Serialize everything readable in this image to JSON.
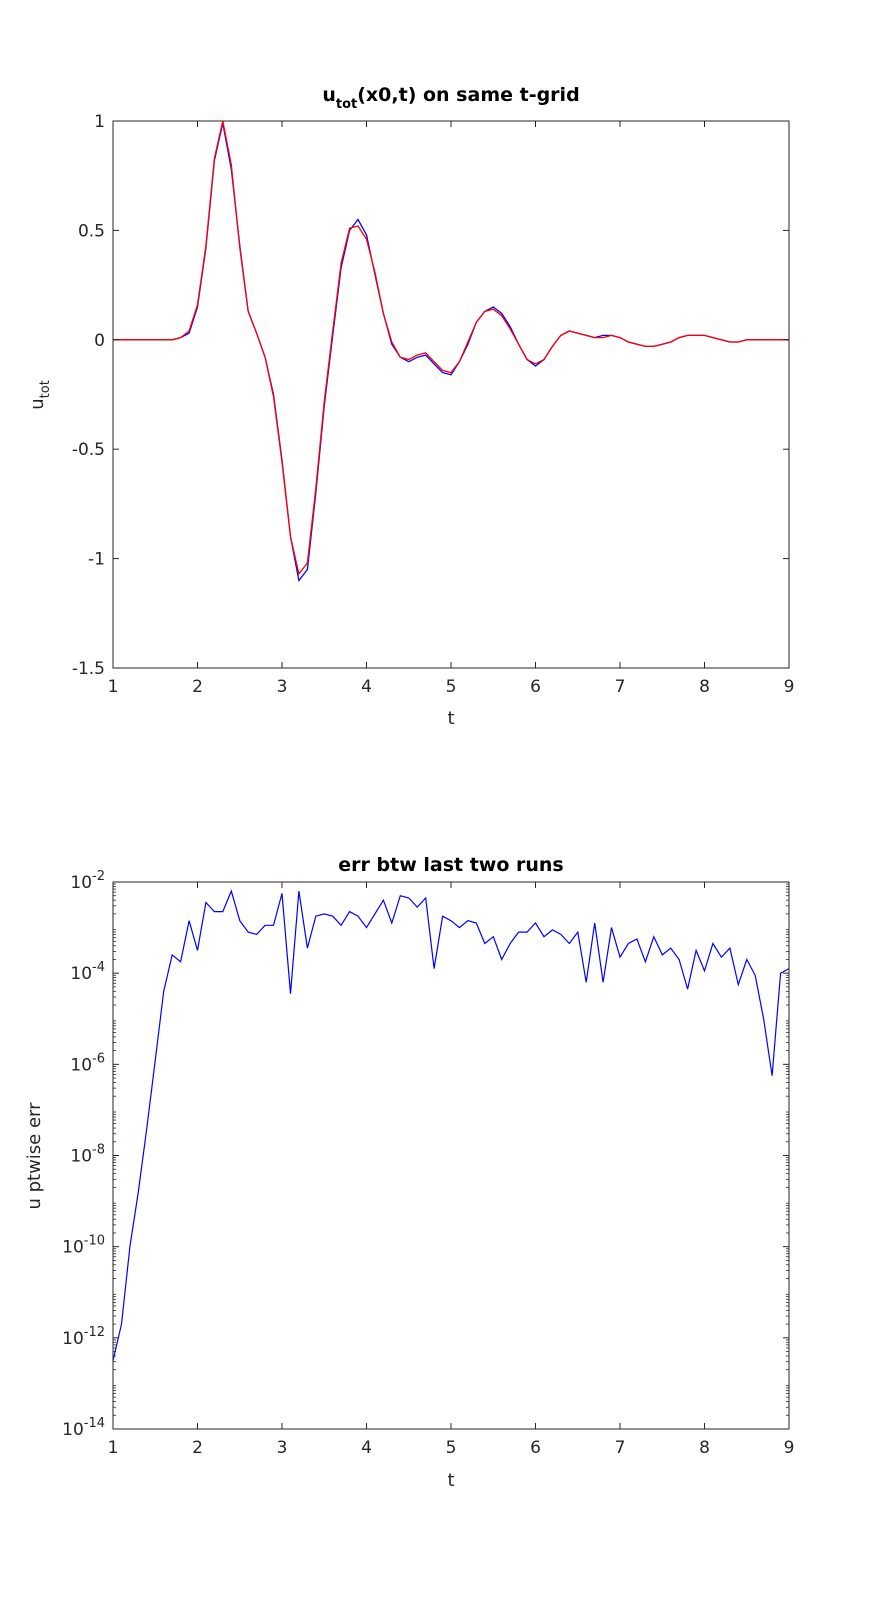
{
  "chart_data": [
    {
      "type": "line",
      "title_main": "u",
      "title_sub": "tot",
      "title_rest": "(x0,t) on same t-grid",
      "xlabel": "t",
      "ylabel_main": "u",
      "ylabel_sub": "tot",
      "xlim": [
        1,
        9
      ],
      "ylim": [
        -1.5,
        1
      ],
      "xticks": [
        1,
        2,
        3,
        4,
        5,
        6,
        7,
        8,
        9
      ],
      "yticks": [
        -1.5,
        -1,
        -0.5,
        0,
        0.5,
        1
      ],
      "ytick_labels": [
        "-1.5",
        "-1",
        "-0.5",
        "0",
        "0.5",
        "1"
      ],
      "grid": false,
      "series": [
        {
          "color": "#0000ff",
          "x": [
            1.0,
            1.7,
            1.8,
            1.9,
            2.0,
            2.1,
            2.2,
            2.3,
            2.4,
            2.5,
            2.6,
            2.7,
            2.8,
            2.9,
            3.0,
            3.1,
            3.2,
            3.3,
            3.4,
            3.5,
            3.6,
            3.7,
            3.8,
            3.9,
            4.0,
            4.1,
            4.2,
            4.3,
            4.4,
            4.5,
            4.6,
            4.7,
            4.8,
            4.9,
            5.0,
            5.1,
            5.2,
            5.3,
            5.4,
            5.5,
            5.6,
            5.7,
            5.8,
            5.9,
            6.0,
            6.1,
            6.2,
            6.3,
            6.4,
            6.5,
            6.6,
            6.7,
            6.8,
            6.9,
            7.0,
            7.1,
            7.2,
            7.3,
            7.4,
            7.5,
            7.6,
            7.7,
            7.8,
            7.9,
            8.0,
            8.1,
            8.2,
            8.3,
            8.4,
            8.5,
            8.6,
            8.7,
            8.8,
            8.9,
            9.0
          ],
          "y": [
            0,
            0,
            0.01,
            0.03,
            0.15,
            0.42,
            0.82,
            0.99,
            0.78,
            0.43,
            0.13,
            0.03,
            -0.08,
            -0.25,
            -0.55,
            -0.9,
            -1.1,
            -1.05,
            -0.7,
            -0.3,
            0.02,
            0.33,
            0.5,
            0.55,
            0.48,
            0.3,
            0.12,
            -0.02,
            -0.08,
            -0.1,
            -0.08,
            -0.07,
            -0.11,
            -0.15,
            -0.16,
            -0.1,
            -0.02,
            0.08,
            0.13,
            0.15,
            0.12,
            0.06,
            -0.02,
            -0.09,
            -0.12,
            -0.09,
            -0.03,
            0.02,
            0.04,
            0.03,
            0.02,
            0.01,
            0.02,
            0.02,
            0.01,
            -0.01,
            -0.02,
            -0.03,
            -0.03,
            -0.02,
            -0.01,
            0.01,
            0.02,
            0.02,
            0.02,
            0.01,
            0,
            -0.01,
            -0.01,
            0,
            0,
            0,
            0,
            0,
            0
          ]
        },
        {
          "color": "#ff0000",
          "x": [
            1.0,
            1.7,
            1.8,
            1.9,
            2.0,
            2.1,
            2.2,
            2.3,
            2.4,
            2.5,
            2.6,
            2.7,
            2.8,
            2.9,
            3.0,
            3.1,
            3.2,
            3.3,
            3.4,
            3.5,
            3.6,
            3.7,
            3.8,
            3.9,
            4.0,
            4.1,
            4.2,
            4.3,
            4.4,
            4.5,
            4.6,
            4.7,
            4.8,
            4.9,
            5.0,
            5.1,
            5.2,
            5.3,
            5.4,
            5.5,
            5.6,
            5.7,
            5.8,
            5.9,
            6.0,
            6.1,
            6.2,
            6.3,
            6.4,
            6.5,
            6.6,
            6.7,
            6.8,
            6.9,
            7.0,
            7.1,
            7.2,
            7.3,
            7.4,
            7.5,
            7.6,
            7.7,
            7.8,
            7.9,
            8.0,
            8.1,
            8.2,
            8.3,
            8.4,
            8.5,
            8.6,
            8.7,
            8.8,
            8.9,
            9.0
          ],
          "y": [
            0,
            0,
            0.01,
            0.04,
            0.16,
            0.43,
            0.83,
            1.0,
            0.8,
            0.42,
            0.13,
            0.03,
            -0.08,
            -0.26,
            -0.56,
            -0.9,
            -1.07,
            -1.02,
            -0.68,
            -0.28,
            0.04,
            0.35,
            0.51,
            0.52,
            0.46,
            0.31,
            0.12,
            -0.01,
            -0.08,
            -0.09,
            -0.07,
            -0.06,
            -0.1,
            -0.14,
            -0.15,
            -0.1,
            -0.01,
            0.08,
            0.13,
            0.14,
            0.11,
            0.05,
            -0.02,
            -0.09,
            -0.11,
            -0.09,
            -0.03,
            0.02,
            0.04,
            0.03,
            0.02,
            0.01,
            0.01,
            0.02,
            0.01,
            -0.01,
            -0.02,
            -0.03,
            -0.03,
            -0.02,
            -0.01,
            0.01,
            0.02,
            0.02,
            0.02,
            0.01,
            0,
            -0.01,
            -0.01,
            0,
            0,
            0,
            0,
            0,
            0
          ]
        }
      ]
    },
    {
      "type": "line",
      "title": "err btw last two runs",
      "xlabel": "t",
      "ylabel": "u ptwise err",
      "xlim": [
        1,
        9
      ],
      "ylim_exp": [
        -14,
        -2
      ],
      "yscale": "log",
      "xticks": [
        1,
        2,
        3,
        4,
        5,
        6,
        7,
        8,
        9
      ],
      "yticks_exp": [
        -14,
        -12,
        -10,
        -8,
        -6,
        -4,
        -2
      ],
      "ytick_base": "10",
      "grid": false,
      "series": [
        {
          "color": "#0000ff",
          "x": [
            1.0,
            1.1,
            1.2,
            1.3,
            1.4,
            1.5,
            1.6,
            1.7,
            1.8,
            1.9,
            2.0,
            2.1,
            2.2,
            2.3,
            2.4,
            2.5,
            2.6,
            2.7,
            2.8,
            2.9,
            3.0,
            3.1,
            3.2,
            3.3,
            3.4,
            3.5,
            3.6,
            3.7,
            3.8,
            3.9,
            4.0,
            4.1,
            4.2,
            4.3,
            4.4,
            4.5,
            4.6,
            4.7,
            4.8,
            4.9,
            5.0,
            5.1,
            5.2,
            5.3,
            5.4,
            5.5,
            5.6,
            5.7,
            5.8,
            5.9,
            6.0,
            6.1,
            6.2,
            6.3,
            6.4,
            6.5,
            6.6,
            6.7,
            6.8,
            6.9,
            7.0,
            7.1,
            7.2,
            7.3,
            7.4,
            7.5,
            7.6,
            7.7,
            7.8,
            7.9,
            8.0,
            8.1,
            8.2,
            8.3,
            8.4,
            8.5,
            8.6,
            8.7,
            8.8,
            8.9,
            9.0
          ],
          "y_exp": [
            -12.5,
            -11.7,
            -10.0,
            -8.8,
            -7.4,
            -5.9,
            -4.4,
            -3.6,
            -3.75,
            -2.85,
            -3.5,
            -2.45,
            -2.65,
            -2.65,
            -2.2,
            -2.85,
            -3.1,
            -3.15,
            -2.95,
            -2.95,
            -2.25,
            -4.45,
            -2.2,
            -3.45,
            -2.75,
            -2.7,
            -2.75,
            -2.95,
            -2.65,
            -2.75,
            -3.0,
            -2.7,
            -2.4,
            -2.9,
            -2.3,
            -2.35,
            -2.55,
            -2.35,
            -3.9,
            -2.75,
            -2.85,
            -3.0,
            -2.85,
            -2.9,
            -3.35,
            -3.2,
            -3.7,
            -3.35,
            -3.1,
            -3.1,
            -2.9,
            -3.2,
            -3.05,
            -3.15,
            -3.35,
            -3.1,
            -4.2,
            -2.9,
            -4.2,
            -3.0,
            -3.65,
            -3.35,
            -3.25,
            -3.75,
            -3.2,
            -3.6,
            -3.45,
            -3.7,
            -4.35,
            -3.5,
            -3.95,
            -3.35,
            -3.65,
            -3.45,
            -4.25,
            -3.7,
            -4.05,
            -5.0,
            -6.25,
            -4.0,
            -3.9
          ]
        }
      ]
    }
  ]
}
